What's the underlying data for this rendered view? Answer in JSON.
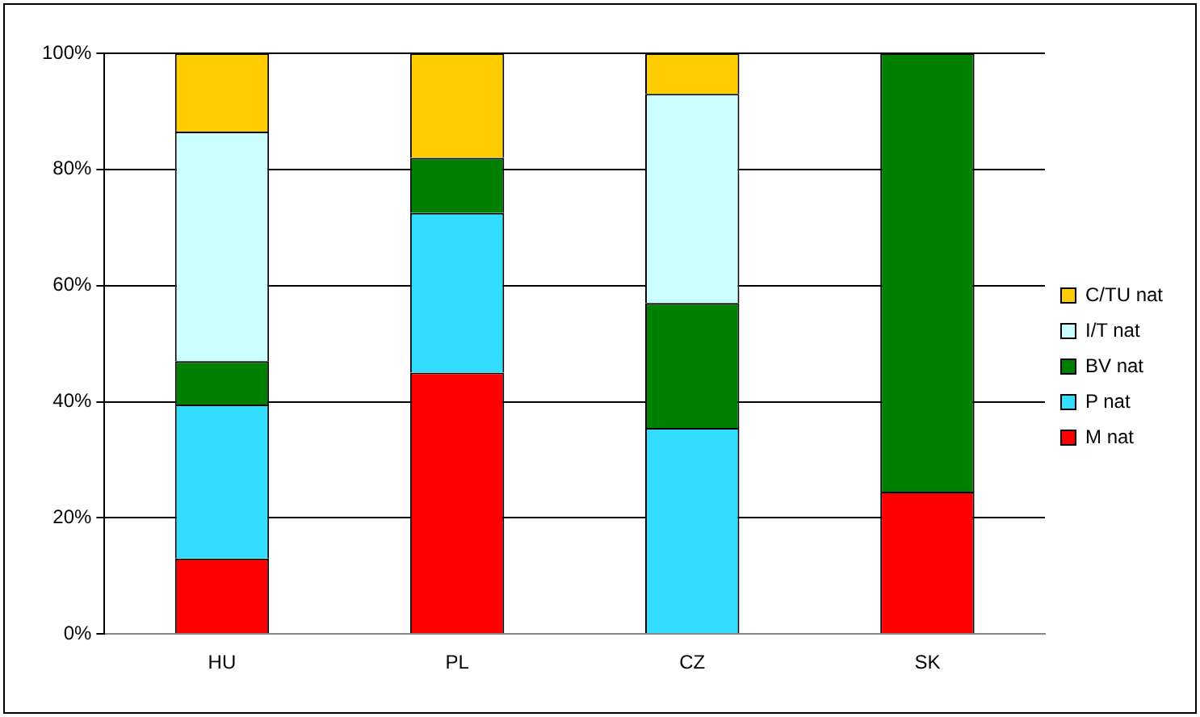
{
  "chart_data": {
    "type": "bar",
    "stacked": true,
    "categories": [
      "HU",
      "PL",
      "CZ",
      "SK"
    ],
    "series": [
      {
        "name": "M nat",
        "color": "#ff0000",
        "values": [
          13,
          45,
          0,
          24.5
        ]
      },
      {
        "name": "P nat",
        "color": "#33ddff",
        "values": [
          26.5,
          27.5,
          35.5,
          0
        ]
      },
      {
        "name": "BV nat",
        "color": "#008000",
        "values": [
          7.5,
          9.5,
          21.5,
          75.5
        ]
      },
      {
        "name": "I/T nat",
        "color": "#ccffff",
        "values": [
          39.5,
          0,
          36,
          0
        ]
      },
      {
        "name": "C/TU nat",
        "color": "#ffcc00",
        "values": [
          13.5,
          18,
          7,
          0
        ]
      }
    ],
    "ylim": [
      0,
      100
    ],
    "yticks": [
      {
        "value": 0,
        "label": "0%"
      },
      {
        "value": 20,
        "label": "20%"
      },
      {
        "value": 40,
        "label": "40%"
      },
      {
        "value": 60,
        "label": "60%"
      },
      {
        "value": 80,
        "label": "80%"
      },
      {
        "value": 100,
        "label": "100%"
      }
    ],
    "grid": "y",
    "legend": "right"
  }
}
